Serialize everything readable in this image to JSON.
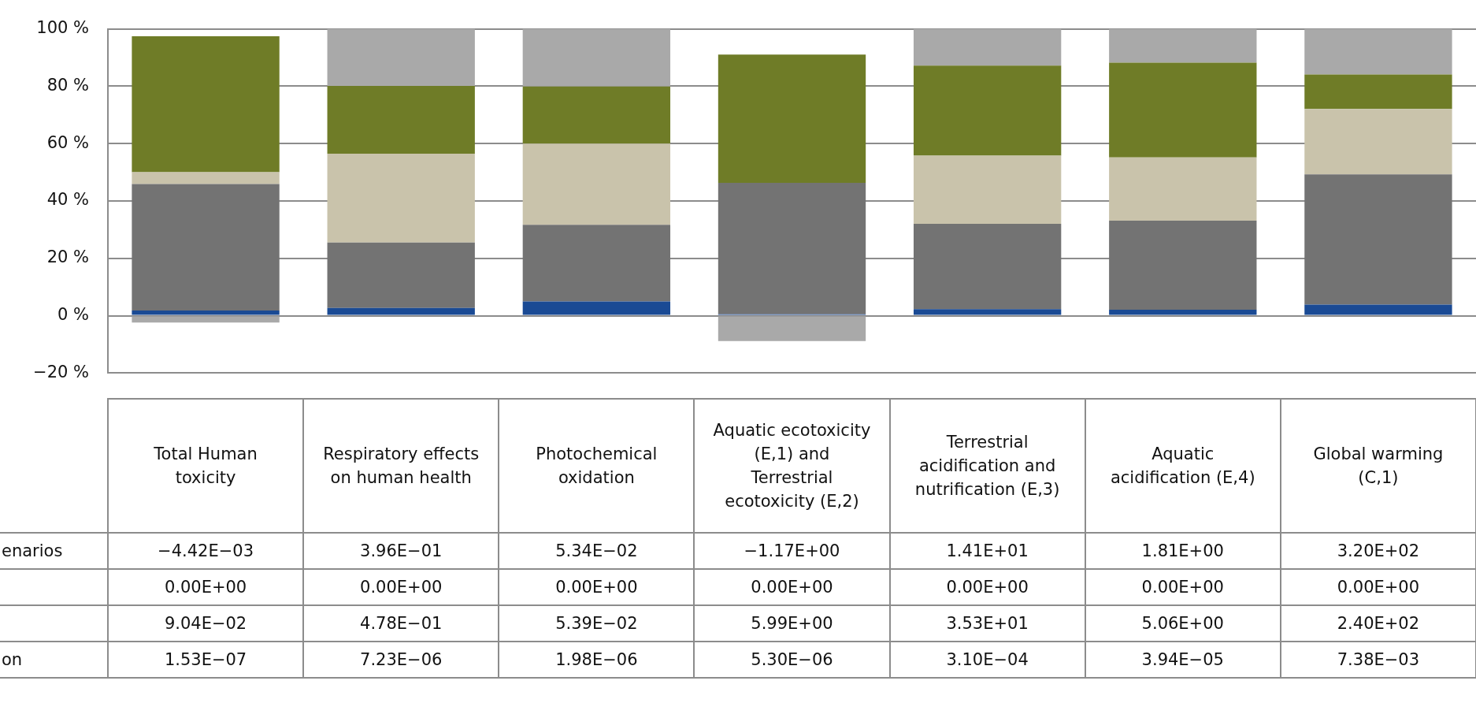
{
  "chart_data": {
    "type": "bar",
    "stacked": true,
    "grid": "y",
    "legend": false,
    "categories": [
      "Total Human toxicity",
      "Respiratory effects on human health",
      "Photochemical oxidation",
      "Aquatic ecotoxicity (E,1) and Terrestrial ecotoxicity (E,2)",
      "Terrestrial acidification and nutrification (E,3)",
      "Aquatic acidification (E,4)",
      "Global warming (C,1)"
    ],
    "series": [
      {
        "color": "#1a4a94",
        "values": [
          1.8,
          2.7,
          5.0,
          0.5,
          2.3,
          2.1,
          3.9
        ]
      },
      {
        "color": "#737373",
        "values": [
          44.1,
          22.8,
          26.7,
          45.8,
          29.7,
          31.0,
          45.4
        ]
      },
      {
        "color": "#c9c3ab",
        "values": [
          4.1,
          31.0,
          28.3,
          0,
          23.8,
          22.1,
          22.8
        ]
      },
      {
        "color": "#6f7c27",
        "values": [
          47.4,
          23.6,
          19.9,
          44.7,
          31.4,
          33.0,
          12.0
        ]
      },
      {
        "color": "#a9a9a9",
        "values": [
          -2.4,
          19.9,
          20.1,
          -8.8,
          12.8,
          11.8,
          15.9
        ]
      }
    ],
    "ylim": [
      -20,
      100
    ],
    "yticks": [
      {
        "value": -20,
        "label": "−20 %"
      },
      {
        "value": 0,
        "label": "0 %"
      },
      {
        "value": 20,
        "label": "20 %"
      },
      {
        "value": 40,
        "label": "40 %"
      },
      {
        "value": 60,
        "label": "60 %"
      },
      {
        "value": 80,
        "label": "80 %"
      },
      {
        "value": 100,
        "label": "100 %"
      }
    ],
    "annotations": [
      "enarios",
      "−4.42E−03",
      "3.96E−01",
      "5.34E−02",
      "−1.17E+00",
      "1.41E+01",
      "1.81E+00",
      "3.20E+02",
      "0.00E+00",
      "0.00E+00",
      "0.00E+00",
      "0.00E+00",
      "0.00E+00",
      "0.00E+00",
      "0.00E+00",
      "9.04E−02",
      "4.78E−01",
      "5.39E−02",
      "5.99E+00",
      "3.53E+01",
      "5.06E+00",
      "2.40E+02",
      "on",
      "1.53E−07",
      "7.23E−06",
      "1.98E−06",
      "5.30E−06",
      "3.10E−04",
      "3.94E−05",
      "7.38E−03"
    ]
  }
}
